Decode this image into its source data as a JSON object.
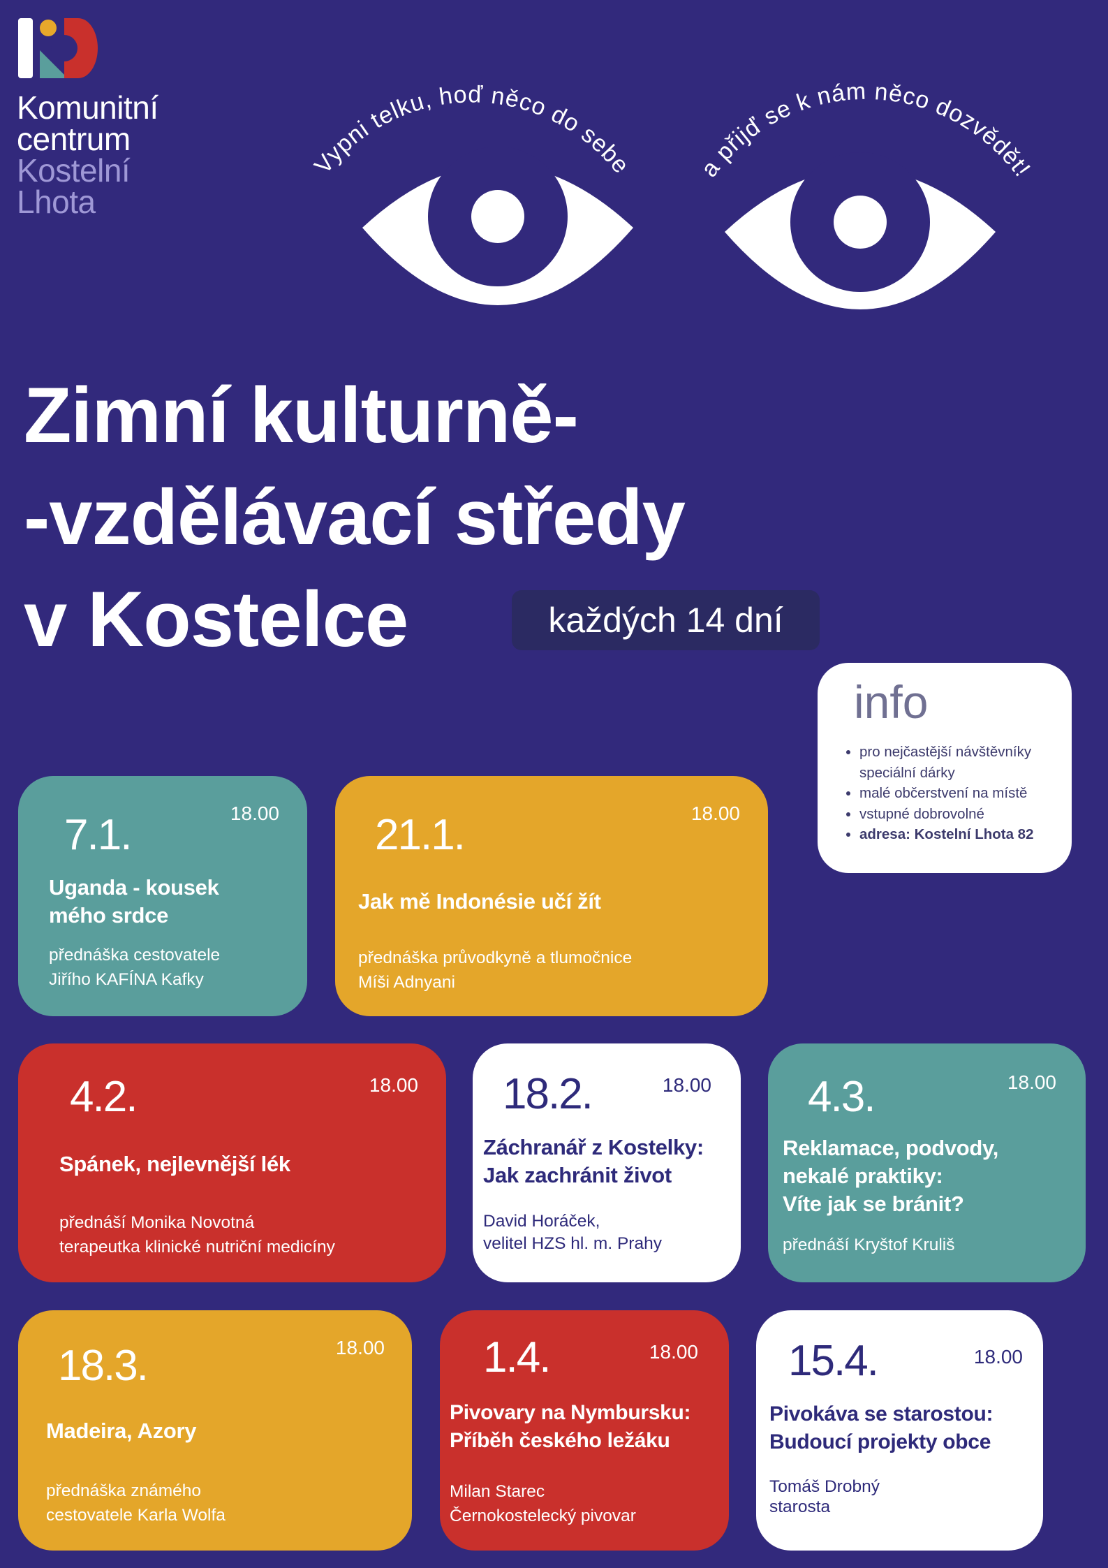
{
  "colors": {
    "background": "#32297c",
    "teal": "#5a9e9c",
    "orange": "#e4a62a",
    "red": "#c9302c",
    "white": "#ffffff",
    "navy": "#2e2a7a",
    "lavender": "#9f98d6",
    "logo_yellow": "#e8a82b"
  },
  "logo": {
    "lines": [
      "Komunitní",
      "centrum",
      "Kostelní",
      "Lhota"
    ]
  },
  "slogan": {
    "left": "Vypni telku, hoď něco do sebe",
    "right": "a přijď se k nám něco dozvědět!"
  },
  "title": {
    "lines": [
      "Zimní kulturně-",
      "-vzdělávací středy",
      "v Kostelce"
    ]
  },
  "badge": "každých 14 dní",
  "info": {
    "heading": "info",
    "items": [
      "pro nejčastější návštěvníky speciální dárky",
      "malé občerstvení na místě",
      "vstupné dobrovolné",
      "adresa: Kostelní Lhota 82"
    ]
  },
  "events": [
    {
      "date": "7.1.",
      "time": "18.00",
      "title": [
        "Uganda - kousek",
        "mého srdce"
      ],
      "speaker": [
        "přednáška cestovatele",
        "Jiřího KAFÍNA Kafky"
      ],
      "color": "teal"
    },
    {
      "date": "21.1.",
      "time": "18.00",
      "title": [
        "Jak mě Indonésie učí žít"
      ],
      "speaker": [
        "přednáška průvodkyně a tlumočnice",
        "Míši Adnyani"
      ],
      "color": "orange"
    },
    {
      "date": "4.2.",
      "time": "18.00",
      "title": [
        "Spánek, nejlevnější lék"
      ],
      "speaker": [
        "přednáší Monika Novotná",
        "terapeutka klinické nutriční medicíny"
      ],
      "color": "red"
    },
    {
      "date": "18.2.",
      "time": "18.00",
      "title": [
        "Záchranář z Kostelky:",
        "Jak zachránit život"
      ],
      "speaker": [
        "David Horáček,",
        "velitel HZS hl. m. Prahy"
      ],
      "color": "white"
    },
    {
      "date": "4.3.",
      "time": "18.00",
      "title": [
        "Reklamace, podvody,",
        "nekalé praktiky:",
        "Víte jak se bránit?"
      ],
      "speaker": [
        "přednáší Kryštof Kruliš"
      ],
      "color": "teal"
    },
    {
      "date": "18.3.",
      "time": "18.00",
      "title": [
        "Madeira, Azory"
      ],
      "speaker": [
        "přednáška známého",
        "cestovatele Karla Wolfa"
      ],
      "color": "orange"
    },
    {
      "date": "1.4.",
      "time": "18.00",
      "title": [
        "Pivovary na Nymbursku:",
        "Příběh českého ležáku"
      ],
      "speaker": [
        "Milan Starec",
        "Černokostelecký pivovar"
      ],
      "color": "red"
    },
    {
      "date": "15.4.",
      "time": "18.00",
      "title": [
        "Pivokáva se starostou:",
        "Budoucí projekty obce"
      ],
      "speaker": [
        "Tomáš Drobný",
        "starosta"
      ],
      "color": "white"
    }
  ]
}
